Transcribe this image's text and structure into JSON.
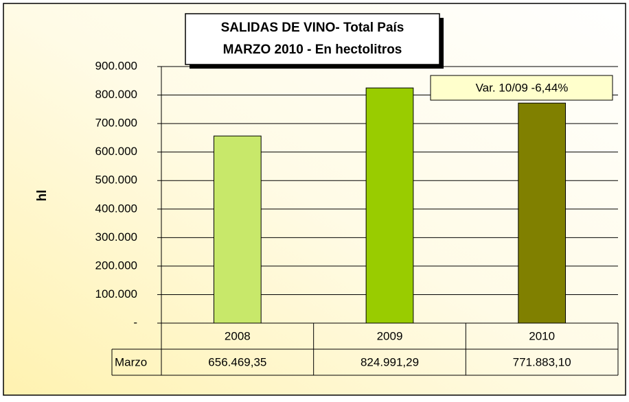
{
  "chart_data": {
    "type": "bar",
    "title": "SALIDAS  DE VINO- Total País",
    "subtitle": "MARZO 2010 - En hectolitros",
    "y_label": "hl",
    "annotation": "Var. 10/09  -6,44%",
    "categories": [
      "2008",
      "2009",
      "2010"
    ],
    "series": [
      {
        "name": "Marzo",
        "colors": [
          "#c8e86a",
          "#99cc00",
          "#808000"
        ],
        "values": [
          656469.35,
          824991.29,
          771883.1
        ],
        "value_labels": [
          "656.469,35",
          "824.991,29",
          "771.883,10"
        ]
      }
    ],
    "ylim": [
      0,
      900000
    ],
    "yticks": [
      {
        "value": 0,
        "label": "-"
      },
      {
        "value": 100000,
        "label": "100.000"
      },
      {
        "value": 200000,
        "label": "200.000"
      },
      {
        "value": 300000,
        "label": "300.000"
      },
      {
        "value": 400000,
        "label": "400.000"
      },
      {
        "value": 500000,
        "label": "500.000"
      },
      {
        "value": 600000,
        "label": "600.000"
      },
      {
        "value": 700000,
        "label": "700.000"
      },
      {
        "value": 800000,
        "label": "800.000"
      },
      {
        "value": 900000,
        "label": "900.000"
      }
    ],
    "grid": true
  }
}
